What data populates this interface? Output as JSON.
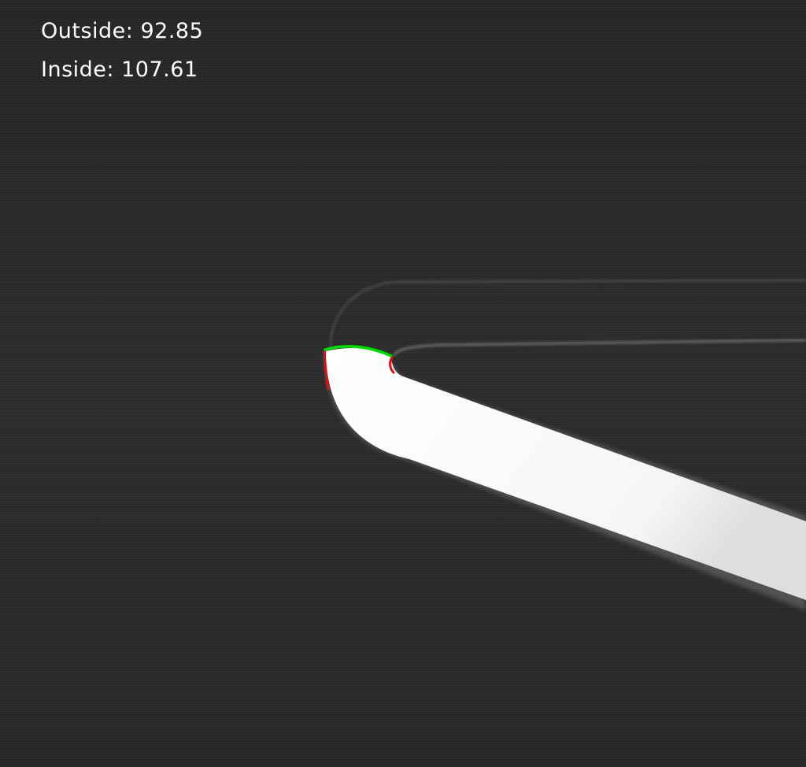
{
  "measurements": {
    "outside_label": "Outside:",
    "outside_value": "92.85",
    "inside_label": "Inside:",
    "inside_value": "107.61"
  },
  "colors": {
    "outside_mark": "#e01010",
    "inside_mark": "#00e000",
    "specimen": "#ffffff",
    "background": "#2a2a2a"
  }
}
